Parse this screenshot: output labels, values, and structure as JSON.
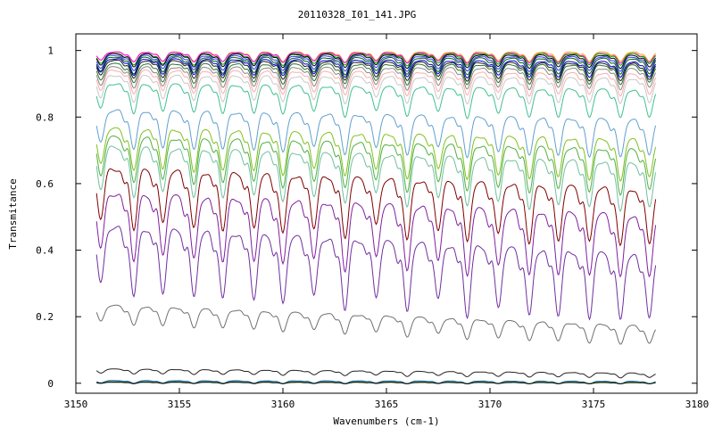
{
  "chart_data": {
    "type": "line",
    "title": "20110328_I01_141.JPG",
    "xlabel": "Wavenumbers (cm-1)",
    "ylabel": "Transmitance",
    "xlim": [
      3150,
      3180
    ],
    "ylim": [
      -0.03,
      1.05
    ],
    "x_range_data": [
      3151,
      3178
    ],
    "x_ticks": [
      3150,
      3155,
      3160,
      3165,
      3170,
      3175,
      3180
    ],
    "y_ticks": [
      0,
      0.2,
      0.4,
      0.6,
      0.8,
      1
    ],
    "y_tick_labels": [
      "0",
      "0.2",
      "0.4",
      "0.6",
      "0.8",
      "1"
    ],
    "grid": false,
    "legend": "none",
    "absorption_line_positions": [
      3151.2,
      3152.8,
      3154.2,
      3155.7,
      3157.1,
      3158.6,
      3160.0,
      3161.5,
      3163.0,
      3164.5,
      3166.0,
      3167.5,
      3168.9,
      3170.4,
      3171.9,
      3173.3,
      3174.8,
      3176.3,
      3177.7
    ],
    "series": [
      {
        "start": 0.995,
        "end": 0.995,
        "depth": 0.03,
        "color": "#ff9900"
      },
      {
        "start": 0.995,
        "end": 0.99,
        "depth": 0.03,
        "color": "#ff00ff"
      },
      {
        "start": 0.99,
        "end": 0.99,
        "depth": 0.035,
        "color": "#00a000"
      },
      {
        "start": 0.99,
        "end": 0.985,
        "depth": 0.04,
        "color": "#000000"
      },
      {
        "start": 0.985,
        "end": 0.98,
        "depth": 0.045,
        "color": "#3333ff"
      },
      {
        "start": 0.98,
        "end": 0.975,
        "depth": 0.05,
        "color": "#006400"
      },
      {
        "start": 0.975,
        "end": 0.965,
        "depth": 0.05,
        "color": "#0000cc"
      },
      {
        "start": 0.97,
        "end": 0.96,
        "depth": 0.055,
        "color": "#1c1c1c"
      },
      {
        "start": 0.96,
        "end": 0.955,
        "depth": 0.06,
        "color": "#2f6f2f"
      },
      {
        "start": 0.95,
        "end": 0.945,
        "depth": 0.065,
        "color": "#888888"
      },
      {
        "start": 0.94,
        "end": 0.93,
        "depth": 0.07,
        "color": "#ffaaaa"
      },
      {
        "start": 0.925,
        "end": 0.915,
        "depth": 0.08,
        "color": "#c8c8c8"
      },
      {
        "start": 0.9,
        "end": 0.88,
        "depth": 0.09,
        "color": "#40c090"
      },
      {
        "start": 0.82,
        "end": 0.79,
        "depth": 0.12,
        "color": "#60a0d0"
      },
      {
        "start": 0.765,
        "end": 0.73,
        "depth": 0.13,
        "color": "#80c020"
      },
      {
        "start": 0.74,
        "end": 0.7,
        "depth": 0.14,
        "color": "#50b040"
      },
      {
        "start": 0.71,
        "end": 0.66,
        "depth": 0.15,
        "color": "#70c0a0"
      },
      {
        "start": 0.645,
        "end": 0.58,
        "depth": 0.18,
        "color": "#800000"
      },
      {
        "start": 0.57,
        "end": 0.5,
        "depth": 0.2,
        "color": "#8020a0"
      },
      {
        "start": 0.47,
        "end": 0.38,
        "depth": 0.21,
        "color": "#7030a0"
      },
      {
        "start": 0.235,
        "end": 0.17,
        "depth": 0.06,
        "color": "#707070"
      },
      {
        "start": 0.043,
        "end": 0.03,
        "depth": 0.015,
        "color": "#222222"
      },
      {
        "start": 0.008,
        "end": 0.006,
        "depth": 0.008,
        "color": "#2060c0"
      },
      {
        "start": 0.005,
        "end": 0.004,
        "depth": 0.006,
        "color": "#40a040"
      },
      {
        "start": 0.003,
        "end": 0.002,
        "depth": 0.004,
        "color": "#000000"
      }
    ]
  }
}
